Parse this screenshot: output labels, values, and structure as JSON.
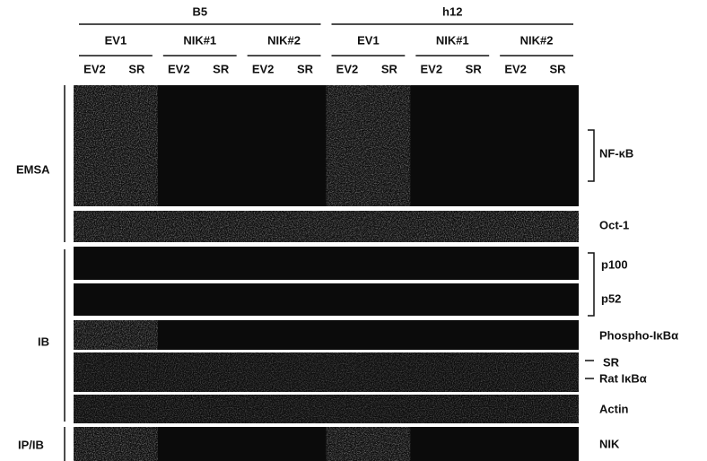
{
  "header": {
    "groups": [
      {
        "label": "B5",
        "subgroups": [
          {
            "label": "EV1",
            "lanes": [
              "EV2",
              "SR"
            ]
          },
          {
            "label": "NIK#1",
            "lanes": [
              "EV2",
              "SR"
            ]
          },
          {
            "label": "NIK#2",
            "lanes": [
              "EV2",
              "SR"
            ]
          }
        ]
      },
      {
        "label": "h12",
        "subgroups": [
          {
            "label": "EV1",
            "lanes": [
              "EV2",
              "SR"
            ]
          },
          {
            "label": "NIK#1",
            "lanes": [
              "EV2",
              "SR"
            ]
          },
          {
            "label": "NIK#2",
            "lanes": [
              "EV2",
              "SR"
            ]
          }
        ]
      }
    ]
  },
  "sections": {
    "emsa": "EMSA",
    "ib": "IB",
    "ipib": "IP/IB"
  },
  "bands": {
    "nfkb": "NF-κB",
    "oct1": "Oct-1",
    "p100": "p100",
    "p52": "p52",
    "phospho": "Phospho-IκBα",
    "sr": "SR",
    "rat": "Rat IκBα",
    "actin": "Actin",
    "nik": "NIK"
  }
}
